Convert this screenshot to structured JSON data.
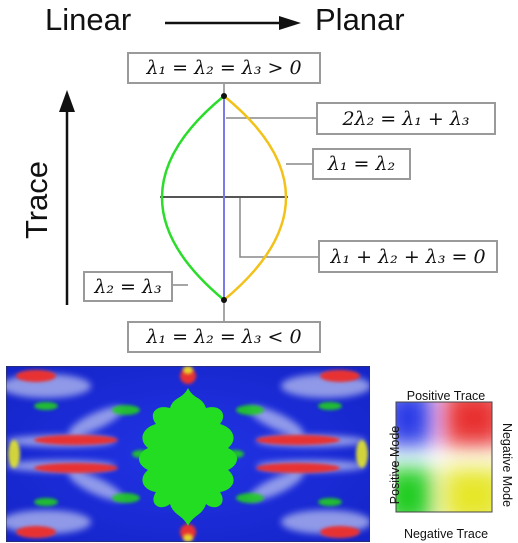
{
  "header": {
    "left": "Linear",
    "right": "Planar"
  },
  "axis": {
    "trace_label": "Trace"
  },
  "boxes": {
    "top": "λ₁ = λ₂ = λ₃ > 0",
    "bottom": "λ₁ = λ₂ = λ₃ < 0",
    "right1": "2λ₂ = λ₁ + λ₃",
    "right2": "λ₁ = λ₂",
    "right3": "λ₁ + λ₂ + λ₃ = 0",
    "left1": "λ₂ = λ₃"
  },
  "legend": {
    "top": "Positive Trace",
    "bottom": "Negative Trace",
    "left": "Positive Mode",
    "right": "Negative Mode"
  },
  "colors": {
    "linear_curve": "#2bdc2b",
    "planar_curve": "#f2c21a",
    "mode_axis": "#7a7ae8",
    "field_background": "#1a2adc",
    "pos_trace_neg_mode": "#e83030",
    "neg_trace_pos_mode": "#22cc22",
    "neg_trace_neg_mode": "#e6e62a"
  }
}
